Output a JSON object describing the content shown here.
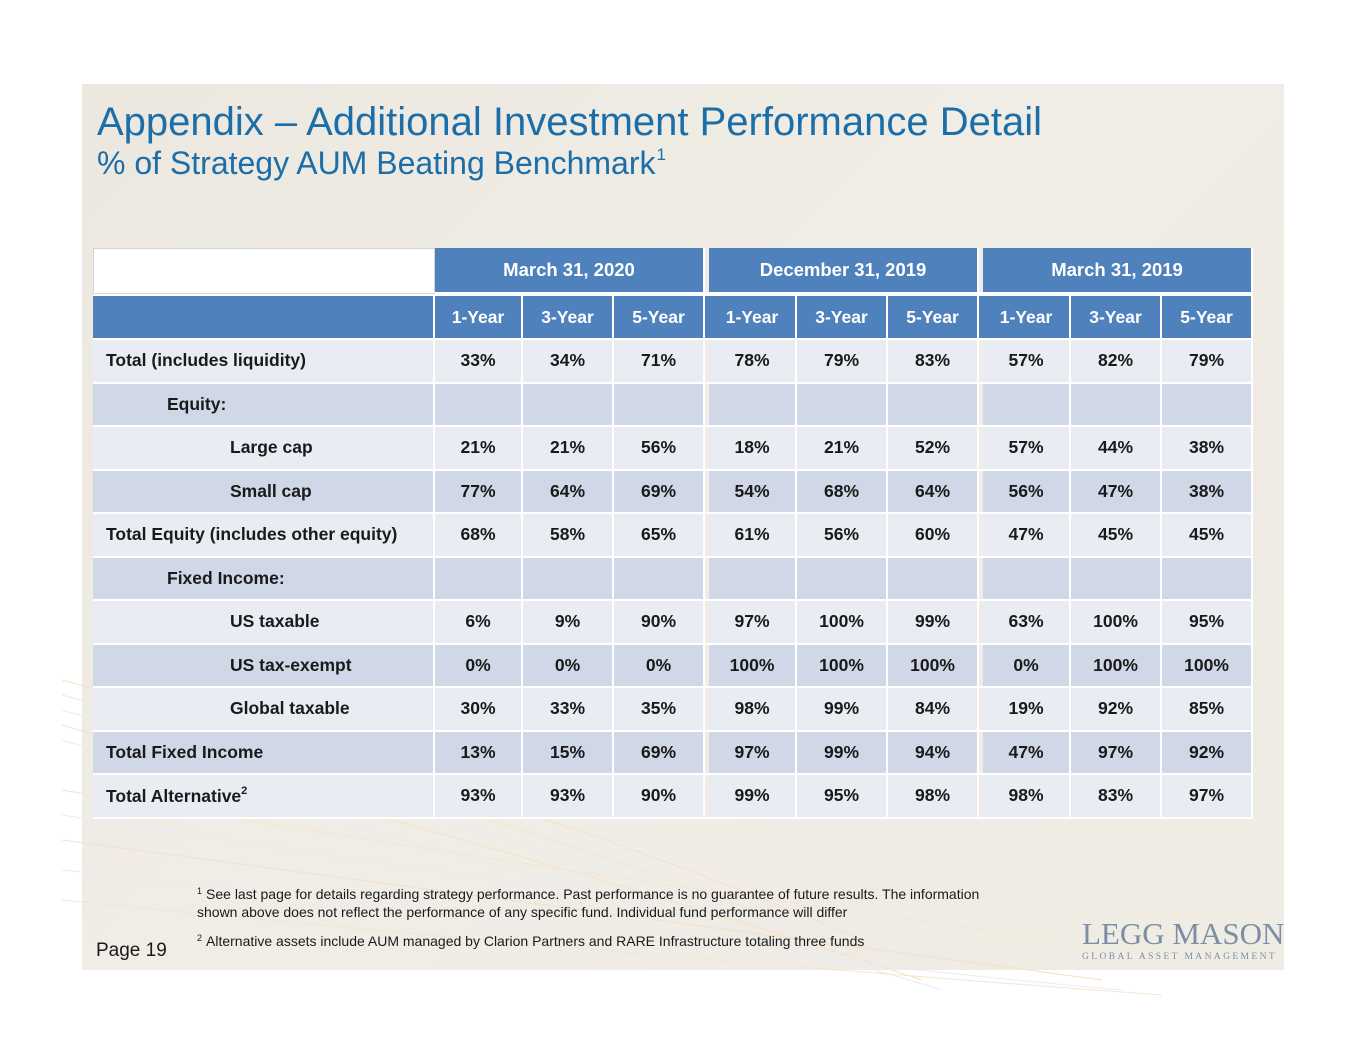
{
  "title": "Appendix – Additional Investment Performance Detail",
  "subtitle": "% of Strategy AUM Beating Benchmark",
  "subtitle_footnote": "1",
  "table": {
    "periods": [
      "March 31, 2020",
      "December 31, 2019",
      "March 31, 2019"
    ],
    "horizons": [
      "1-Year",
      "3-Year",
      "5-Year"
    ],
    "rows": [
      {
        "label": "Total (includes liquidity)",
        "level": 0,
        "values": [
          "33%",
          "34%",
          "71%",
          "78%",
          "79%",
          "83%",
          "57%",
          "82%",
          "79%"
        ]
      },
      {
        "label": "Equity:",
        "level": 1,
        "values": [
          "",
          "",
          "",
          "",
          "",
          "",
          "",
          "",
          ""
        ]
      },
      {
        "label": "Large cap",
        "level": 2,
        "values": [
          "21%",
          "21%",
          "56%",
          "18%",
          "21%",
          "52%",
          "57%",
          "44%",
          "38%"
        ]
      },
      {
        "label": "Small cap",
        "level": 2,
        "values": [
          "77%",
          "64%",
          "69%",
          "54%",
          "68%",
          "64%",
          "56%",
          "47%",
          "38%"
        ]
      },
      {
        "label": "Total Equity (includes other equity)",
        "level": 0,
        "values": [
          "68%",
          "58%",
          "65%",
          "61%",
          "56%",
          "60%",
          "47%",
          "45%",
          "45%"
        ]
      },
      {
        "label": "Fixed Income:",
        "level": 1,
        "values": [
          "",
          "",
          "",
          "",
          "",
          "",
          "",
          "",
          ""
        ]
      },
      {
        "label": "US taxable",
        "level": 2,
        "values": [
          "6%",
          "9%",
          "90%",
          "97%",
          "100%",
          "99%",
          "63%",
          "100%",
          "95%"
        ]
      },
      {
        "label": "US tax-exempt",
        "level": 2,
        "values": [
          "0%",
          "0%",
          "0%",
          "100%",
          "100%",
          "100%",
          "0%",
          "100%",
          "100%"
        ]
      },
      {
        "label": "Global taxable",
        "level": 2,
        "values": [
          "30%",
          "33%",
          "35%",
          "98%",
          "99%",
          "84%",
          "19%",
          "92%",
          "85%"
        ]
      },
      {
        "label": "Total Fixed Income",
        "level": 0,
        "values": [
          "13%",
          "15%",
          "69%",
          "97%",
          "99%",
          "94%",
          "47%",
          "97%",
          "92%"
        ]
      },
      {
        "label": "Total Alternative",
        "level": 0,
        "footnote": "2",
        "values": [
          "93%",
          "93%",
          "90%",
          "99%",
          "95%",
          "98%",
          "98%",
          "83%",
          "97%"
        ]
      }
    ]
  },
  "footnotes": [
    {
      "marker": "1",
      "text": "See last page for details regarding strategy performance. Past performance is no guarantee of future results. The information shown above does not reflect the performance of any specific fund. Individual fund performance will differ"
    },
    {
      "marker": "2",
      "text": "Alternative assets include AUM managed by Clarion Partners and RARE Infrastructure totaling three funds"
    }
  ],
  "page_label": "Page 19",
  "logo": {
    "main": "LEGG MASON",
    "sub": "GLOBAL ASSET MANAGEMENT"
  },
  "colors": {
    "title": "#1c6ea9",
    "header_bg": "#4f81bd",
    "row_light": "#e9ecf3",
    "row_dark": "#d0d7e6"
  }
}
